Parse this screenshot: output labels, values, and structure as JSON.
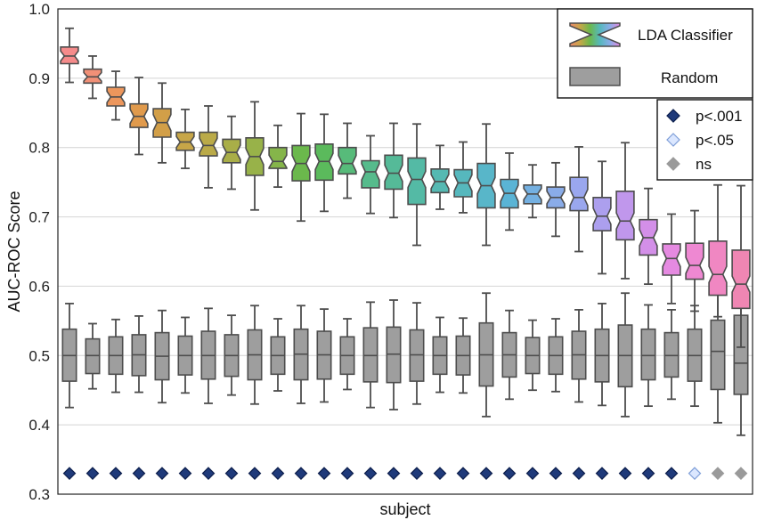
{
  "chart_data": {
    "type": "box",
    "xlabel": "subject",
    "ylabel": "AUC-ROC Score",
    "ylim": [
      0.3,
      1.0
    ],
    "yticks": [
      "0.3",
      "0.4",
      "0.5",
      "0.6",
      "0.7",
      "0.8",
      "0.9",
      "1.0"
    ],
    "grid": "horizontal",
    "legend": {
      "placement": "top-right",
      "series": [
        {
          "name": "LDA Classifier"
        },
        {
          "name": "Random"
        }
      ],
      "significance": [
        {
          "label": "p<.001",
          "color": "#1f3a7a"
        },
        {
          "label": "p<.05",
          "color": "#dbe7ff"
        },
        {
          "label": "ns",
          "color": "#9a9a9a"
        }
      ]
    },
    "lda": [
      {
        "q1": 0.921,
        "med": 0.932,
        "q3": 0.945,
        "min": 0.894,
        "max": 0.972
      },
      {
        "q1": 0.893,
        "med": 0.902,
        "q3": 0.913,
        "min": 0.871,
        "max": 0.932
      },
      {
        "q1": 0.86,
        "med": 0.873,
        "q3": 0.887,
        "min": 0.84,
        "max": 0.91
      },
      {
        "q1": 0.829,
        "med": 0.845,
        "q3": 0.863,
        "min": 0.79,
        "max": 0.901
      },
      {
        "q1": 0.815,
        "med": 0.836,
        "q3": 0.856,
        "min": 0.778,
        "max": 0.893
      },
      {
        "q1": 0.796,
        "med": 0.808,
        "q3": 0.822,
        "min": 0.77,
        "max": 0.855
      },
      {
        "q1": 0.788,
        "med": 0.803,
        "q3": 0.822,
        "min": 0.742,
        "max": 0.86
      },
      {
        "q1": 0.778,
        "med": 0.793,
        "q3": 0.812,
        "min": 0.74,
        "max": 0.845
      },
      {
        "q1": 0.76,
        "med": 0.787,
        "q3": 0.814,
        "min": 0.71,
        "max": 0.866
      },
      {
        "q1": 0.77,
        "med": 0.78,
        "q3": 0.8,
        "min": 0.743,
        "max": 0.832
      },
      {
        "q1": 0.752,
        "med": 0.777,
        "q3": 0.803,
        "min": 0.694,
        "max": 0.849
      },
      {
        "q1": 0.753,
        "med": 0.78,
        "q3": 0.805,
        "min": 0.708,
        "max": 0.848
      },
      {
        "q1": 0.762,
        "med": 0.777,
        "q3": 0.8,
        "min": 0.727,
        "max": 0.835
      },
      {
        "q1": 0.742,
        "med": 0.765,
        "q3": 0.781,
        "min": 0.705,
        "max": 0.817
      },
      {
        "q1": 0.74,
        "med": 0.763,
        "q3": 0.789,
        "min": 0.699,
        "max": 0.835
      },
      {
        "q1": 0.718,
        "med": 0.754,
        "q3": 0.785,
        "min": 0.659,
        "max": 0.834
      },
      {
        "q1": 0.735,
        "med": 0.751,
        "q3": 0.769,
        "min": 0.711,
        "max": 0.803
      },
      {
        "q1": 0.729,
        "med": 0.749,
        "q3": 0.768,
        "min": 0.706,
        "max": 0.808
      },
      {
        "q1": 0.713,
        "med": 0.745,
        "q3": 0.777,
        "min": 0.659,
        "max": 0.834
      },
      {
        "q1": 0.713,
        "med": 0.734,
        "q3": 0.754,
        "min": 0.681,
        "max": 0.792
      },
      {
        "q1": 0.719,
        "med": 0.733,
        "q3": 0.746,
        "min": 0.699,
        "max": 0.775
      },
      {
        "q1": 0.713,
        "med": 0.728,
        "q3": 0.743,
        "min": 0.672,
        "max": 0.778
      },
      {
        "q1": 0.709,
        "med": 0.728,
        "q3": 0.757,
        "min": 0.65,
        "max": 0.801
      },
      {
        "q1": 0.68,
        "med": 0.701,
        "q3": 0.728,
        "min": 0.618,
        "max": 0.78
      },
      {
        "q1": 0.667,
        "med": 0.694,
        "q3": 0.737,
        "min": 0.611,
        "max": 0.807
      },
      {
        "q1": 0.645,
        "med": 0.67,
        "q3": 0.696,
        "min": 0.603,
        "max": 0.741
      },
      {
        "q1": 0.616,
        "med": 0.64,
        "q3": 0.661,
        "min": 0.575,
        "max": 0.704
      },
      {
        "q1": 0.61,
        "med": 0.63,
        "q3": 0.662,
        "min": 0.564,
        "max": 0.709
      },
      {
        "q1": 0.587,
        "med": 0.617,
        "q3": 0.665,
        "min": 0.556,
        "max": 0.746
      },
      {
        "q1": 0.568,
        "med": 0.603,
        "q3": 0.652,
        "min": 0.512,
        "max": 0.745
      }
    ],
    "random": [
      {
        "q1": 0.463,
        "med": 0.5,
        "q3": 0.538,
        "min": 0.425,
        "max": 0.575
      },
      {
        "q1": 0.474,
        "med": 0.5,
        "q3": 0.524,
        "min": 0.452,
        "max": 0.546
      },
      {
        "q1": 0.473,
        "med": 0.5,
        "q3": 0.527,
        "min": 0.447,
        "max": 0.552
      },
      {
        "q1": 0.471,
        "med": 0.501,
        "q3": 0.53,
        "min": 0.447,
        "max": 0.557
      },
      {
        "q1": 0.465,
        "med": 0.499,
        "q3": 0.533,
        "min": 0.432,
        "max": 0.565
      },
      {
        "q1": 0.472,
        "med": 0.5,
        "q3": 0.528,
        "min": 0.446,
        "max": 0.555
      },
      {
        "q1": 0.466,
        "med": 0.5,
        "q3": 0.535,
        "min": 0.431,
        "max": 0.568
      },
      {
        "q1": 0.47,
        "med": 0.5,
        "q3": 0.53,
        "min": 0.443,
        "max": 0.558
      },
      {
        "q1": 0.465,
        "med": 0.501,
        "q3": 0.537,
        "min": 0.43,
        "max": 0.572
      },
      {
        "q1": 0.473,
        "med": 0.5,
        "q3": 0.527,
        "min": 0.449,
        "max": 0.553
      },
      {
        "q1": 0.465,
        "med": 0.502,
        "q3": 0.538,
        "min": 0.431,
        "max": 0.572
      },
      {
        "q1": 0.466,
        "med": 0.501,
        "q3": 0.535,
        "min": 0.433,
        "max": 0.567
      },
      {
        "q1": 0.473,
        "med": 0.5,
        "q3": 0.527,
        "min": 0.451,
        "max": 0.553
      },
      {
        "q1": 0.462,
        "med": 0.5,
        "q3": 0.54,
        "min": 0.425,
        "max": 0.577
      },
      {
        "q1": 0.461,
        "med": 0.502,
        "q3": 0.541,
        "min": 0.422,
        "max": 0.58
      },
      {
        "q1": 0.463,
        "med": 0.501,
        "q3": 0.537,
        "min": 0.43,
        "max": 0.576
      },
      {
        "q1": 0.473,
        "med": 0.5,
        "q3": 0.527,
        "min": 0.447,
        "max": 0.555
      },
      {
        "q1": 0.472,
        "med": 0.5,
        "q3": 0.528,
        "min": 0.446,
        "max": 0.554
      },
      {
        "q1": 0.456,
        "med": 0.501,
        "q3": 0.547,
        "min": 0.412,
        "max": 0.59
      },
      {
        "q1": 0.469,
        "med": 0.501,
        "q3": 0.533,
        "min": 0.437,
        "max": 0.565
      },
      {
        "q1": 0.474,
        "med": 0.5,
        "q3": 0.526,
        "min": 0.45,
        "max": 0.551
      },
      {
        "q1": 0.473,
        "med": 0.5,
        "q3": 0.527,
        "min": 0.448,
        "max": 0.553
      },
      {
        "q1": 0.466,
        "med": 0.501,
        "q3": 0.535,
        "min": 0.433,
        "max": 0.566
      },
      {
        "q1": 0.462,
        "med": 0.5,
        "q3": 0.538,
        "min": 0.428,
        "max": 0.575
      },
      {
        "q1": 0.455,
        "med": 0.5,
        "q3": 0.544,
        "min": 0.412,
        "max": 0.59
      },
      {
        "q1": 0.465,
        "med": 0.5,
        "q3": 0.538,
        "min": 0.427,
        "max": 0.573
      },
      {
        "q1": 0.469,
        "med": 0.5,
        "q3": 0.533,
        "min": 0.437,
        "max": 0.566
      },
      {
        "q1": 0.463,
        "med": 0.5,
        "q3": 0.538,
        "min": 0.427,
        "max": 0.572
      },
      {
        "q1": 0.451,
        "med": 0.506,
        "q3": 0.551,
        "min": 0.403,
        "max": 0.594
      },
      {
        "q1": 0.444,
        "med": 0.489,
        "q3": 0.558,
        "min": 0.385,
        "max": 0.633
      }
    ],
    "significance": [
      "p<.001",
      "p<.001",
      "p<.001",
      "p<.001",
      "p<.001",
      "p<.001",
      "p<.001",
      "p<.001",
      "p<.001",
      "p<.001",
      "p<.001",
      "p<.001",
      "p<.001",
      "p<.001",
      "p<.001",
      "p<.001",
      "p<.001",
      "p<.001",
      "p<.001",
      "p<.001",
      "p<.001",
      "p<.001",
      "p<.001",
      "p<.001",
      "p<.001",
      "p<.001",
      "p<.001",
      "p<.05",
      "ns",
      "ns"
    ],
    "significance_value": 0.33,
    "colors": [
      "#f58b8b",
      "#f19077",
      "#ec965c",
      "#e09a4c",
      "#d29f48",
      "#c7a648",
      "#baaa48",
      "#a9ae48",
      "#98b249",
      "#85b54a",
      "#6bb84c",
      "#5bba5c",
      "#57bb7a",
      "#56bb8c",
      "#55ba98",
      "#54baa5",
      "#55b9b2",
      "#56b8bd",
      "#58b6c9",
      "#5ab4d5",
      "#74b0e1",
      "#8aace8",
      "#9aa7ee",
      "#ac9fee",
      "#c097ec",
      "#d38fe8",
      "#e58ae1",
      "#ee88d2",
      "#f087c2",
      "#ef86b3"
    ],
    "random_color": "#9e9e9e"
  }
}
